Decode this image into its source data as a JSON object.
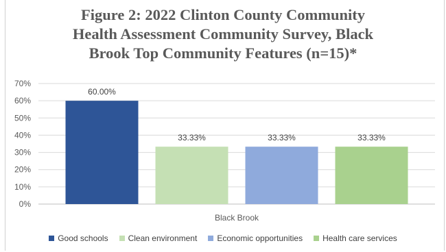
{
  "chart_data": {
    "type": "bar",
    "title_lines": [
      "Figure 2: 2022 Clinton County Community",
      "Health Assessment Community Survey, Black",
      "Brook Top Community Features (n=15)*"
    ],
    "categories": [
      "Black Brook"
    ],
    "series": [
      {
        "name": "Good schools",
        "values": [
          60.0
        ],
        "label": "60.00%",
        "color": "#2e5597"
      },
      {
        "name": "Clean environment",
        "values": [
          33.33
        ],
        "label": "33.33%",
        "color": "#c5e0b4"
      },
      {
        "name": "Economic opportunities",
        "values": [
          33.33
        ],
        "label": "33.33%",
        "color": "#8faadc"
      },
      {
        "name": "Health care services",
        "values": [
          33.33
        ],
        "label": "33.33%",
        "color": "#a9d18e"
      }
    ],
    "ylim": [
      0,
      70
    ],
    "yticks": [
      "0%",
      "10%",
      "20%",
      "30%",
      "40%",
      "50%",
      "60%",
      "70%"
    ],
    "grid": true,
    "legend_position": "bottom",
    "gridline_color": "#d9d9d9"
  }
}
